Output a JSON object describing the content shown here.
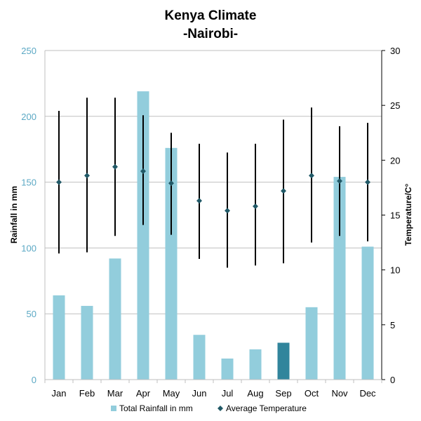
{
  "chart_data": {
    "type": "bar",
    "title": "Kenya Climate",
    "subtitle": "-Nairobi-",
    "categories": [
      "Jan",
      "Feb",
      "Mar",
      "Apr",
      "May",
      "Jun",
      "Jul",
      "Aug",
      "Sep",
      "Oct",
      "Nov",
      "Dec"
    ],
    "ylabel": "Rainfall in mm",
    "y2label": "Temperature/C°",
    "ylim": [
      0,
      250
    ],
    "y2lim": [
      0,
      30
    ],
    "yticks": [
      "0",
      "50",
      "100",
      "150",
      "200",
      "250"
    ],
    "y2ticks": [
      "0",
      "5",
      "10",
      "15",
      "20",
      "25",
      "30"
    ],
    "grid": true,
    "legend_position": "bottom",
    "series": [
      {
        "name": "Total Rainfall in mm",
        "type": "bar",
        "axis": "left",
        "color": "#92cddc",
        "highlight_color": "#31859c",
        "highlight_index": 8,
        "values": [
          64,
          56,
          92,
          219,
          176,
          34,
          16,
          23,
          28,
          55,
          154,
          101
        ]
      },
      {
        "name": "Average Temperature",
        "type": "scatter",
        "axis": "right",
        "color": "#215967",
        "values": [
          18.0,
          18.6,
          19.4,
          19.0,
          17.9,
          16.3,
          15.4,
          15.8,
          17.2,
          18.6,
          18.1,
          18.0
        ],
        "error_high": [
          24.5,
          25.7,
          25.7,
          24.1,
          22.5,
          21.5,
          20.7,
          21.5,
          23.7,
          24.8,
          23.1,
          23.4
        ],
        "error_low": [
          11.5,
          11.6,
          13.1,
          14.1,
          13.2,
          11.0,
          10.2,
          10.4,
          10.6,
          12.5,
          13.1,
          12.6
        ]
      }
    ]
  }
}
